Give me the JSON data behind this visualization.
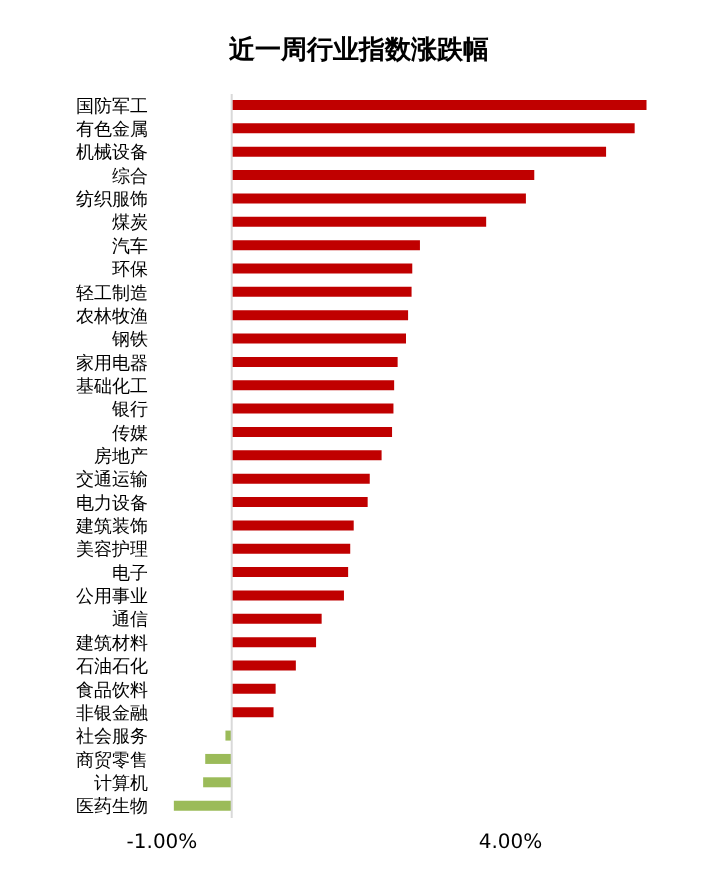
{
  "chart_data": {
    "type": "bar",
    "orientation": "horizontal",
    "title": "近一周行业指数涨跌幅",
    "categories": [
      "国防军工",
      "有色金属",
      "机械设备",
      "综合",
      "纺织服饰",
      "煤炭",
      "汽车",
      "环保",
      "轻工制造",
      "农林牧渔",
      "钢铁",
      "家用电器",
      "基础化工",
      "银行",
      "传媒",
      "房地产",
      "交通运输",
      "电力设备",
      "建筑装饰",
      "美容护理",
      "电子",
      "公用事业",
      "通信",
      "建筑材料",
      "石油石化",
      "食品饮料",
      "非银金融",
      "社会服务",
      "商贸零售",
      "计算机",
      "医药生物"
    ],
    "values": [
      5.95,
      5.78,
      5.37,
      4.34,
      4.22,
      3.65,
      2.7,
      2.59,
      2.58,
      2.53,
      2.5,
      2.38,
      2.33,
      2.32,
      2.3,
      2.15,
      1.98,
      1.95,
      1.75,
      1.7,
      1.67,
      1.61,
      1.29,
      1.21,
      0.92,
      0.63,
      0.6,
      -0.09,
      -0.38,
      -0.41,
      -0.83
    ],
    "colors": [
      "#c00000",
      "#c00000",
      "#c00000",
      "#c00000",
      "#c00000",
      "#c00000",
      "#c00000",
      "#c00000",
      "#c00000",
      "#c00000",
      "#c00000",
      "#c00000",
      "#c00000",
      "#c00000",
      "#c00000",
      "#c00000",
      "#c00000",
      "#c00000",
      "#c00000",
      "#c00000",
      "#c00000",
      "#c00000",
      "#c00000",
      "#c00000",
      "#c00000",
      "#c00000",
      "#c00000",
      "#9bbb59",
      "#9bbb59",
      "#9bbb59",
      "#9bbb59"
    ],
    "xlim": [
      -1,
      6
    ],
    "xticks": [
      {
        "value": -1,
        "label": "-1.00%"
      },
      {
        "value": 4,
        "label": "4.00%"
      }
    ],
    "grid": false,
    "legend": false
  }
}
